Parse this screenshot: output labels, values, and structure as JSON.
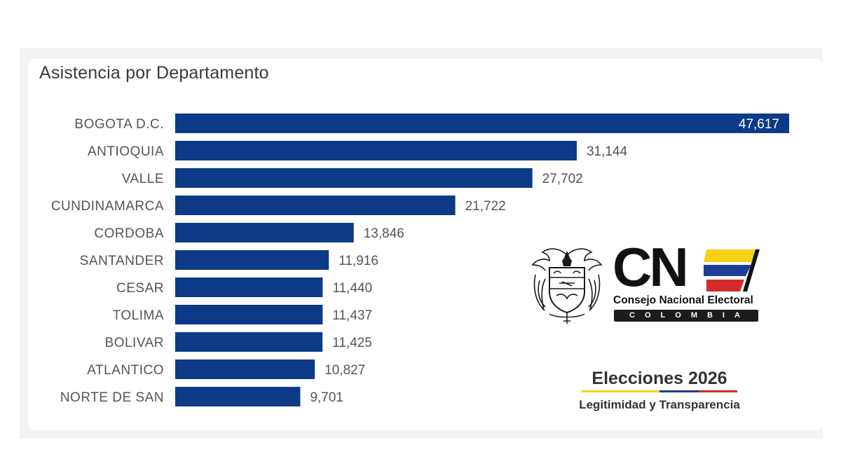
{
  "chart_data": {
    "type": "bar",
    "orientation": "horizontal",
    "title": "Asistencia por Departamento",
    "xlabel": "",
    "ylabel": "",
    "categories": [
      "BOGOTA D.C.",
      "ANTIOQUIA",
      "VALLE",
      "CUNDINAMARCA",
      "CORDOBA",
      "SANTANDER",
      "CESAR",
      "TOLIMA",
      "BOLIVAR",
      "ATLANTICO",
      "NORTE DE SAN"
    ],
    "values": [
      47617,
      31144,
      27702,
      21722,
      13846,
      11916,
      11440,
      11437,
      11425,
      10827,
      9701
    ],
    "value_labels": [
      "47,617",
      "31,144",
      "27,702",
      "21,722",
      "13,846",
      "11,916",
      "11,440",
      "11,437",
      "11,425",
      "10,827",
      "9,701"
    ],
    "xlim": [
      0,
      47617
    ],
    "grid": false,
    "legend": "none",
    "bar_color": "#0d3a87"
  },
  "branding": {
    "cne_letters": "CN",
    "cne_name": "Consejo Nacional Electoral",
    "cne_country": "COLOMBIA",
    "flag_colors": [
      "#f7d117",
      "#1f3c99",
      "#d42a2a"
    ],
    "crest_icon": "colombia-coat-of-arms-icon",
    "elections_title": "Elecciones 2026",
    "elections_subtitle": "Legitimidad y Transparencia"
  }
}
